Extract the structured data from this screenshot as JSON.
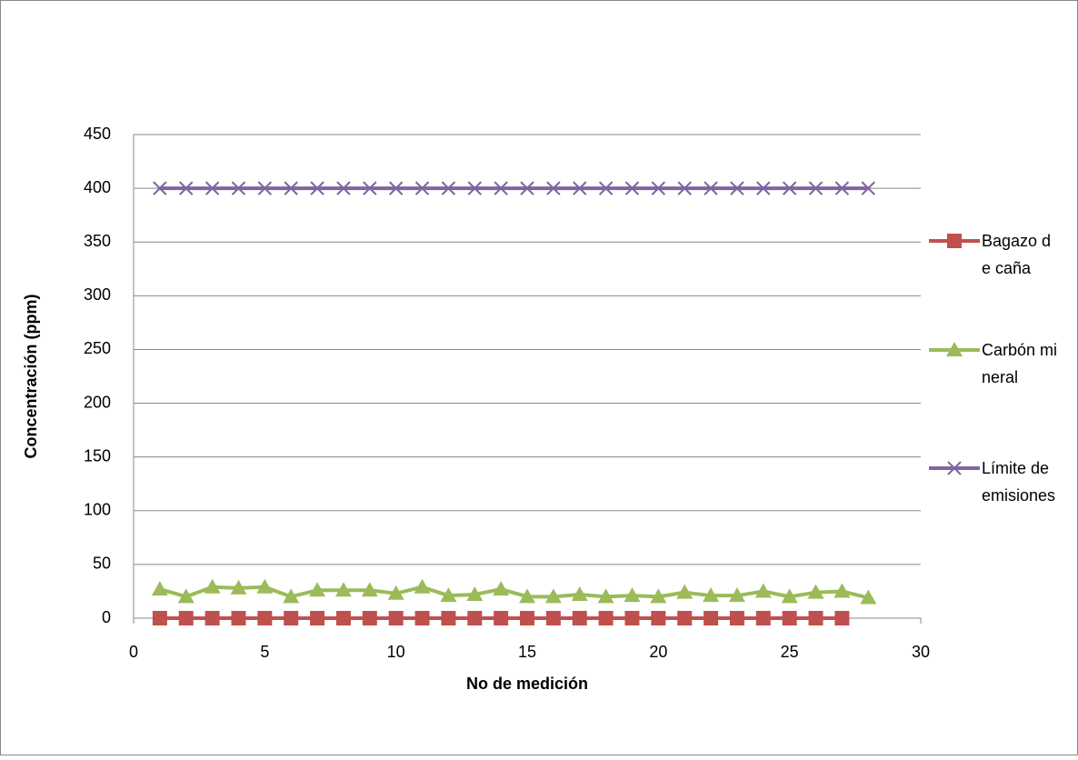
{
  "chart_data": {
    "type": "line",
    "x": [
      1,
      2,
      3,
      4,
      5,
      6,
      7,
      8,
      9,
      10,
      11,
      12,
      13,
      14,
      15,
      16,
      17,
      18,
      19,
      20,
      21,
      22,
      23,
      24,
      25,
      26,
      27,
      28
    ],
    "series": [
      {
        "name": "Bagazo de caña",
        "color": "#c0504d",
        "marker": "square",
        "values": [
          0,
          0,
          0,
          0,
          0,
          0,
          0,
          0,
          0,
          0,
          0,
          0,
          0,
          0,
          0,
          0,
          0,
          0,
          0,
          0,
          0,
          0,
          0,
          0,
          0,
          0,
          0,
          null
        ]
      },
      {
        "name": "Carbón mineral",
        "color": "#9bbb59",
        "marker": "triangle",
        "values": [
          27,
          20,
          29,
          28,
          29,
          20,
          26,
          26,
          26,
          23,
          29,
          21,
          22,
          27,
          20,
          20,
          22,
          20,
          21,
          20,
          24,
          21,
          21,
          25,
          20,
          24,
          25,
          19
        ]
      },
      {
        "name": "Límite de emisiones",
        "color": "#8064a2",
        "marker": "x",
        "values": [
          400,
          400,
          400,
          400,
          400,
          400,
          400,
          400,
          400,
          400,
          400,
          400,
          400,
          400,
          400,
          400,
          400,
          400,
          400,
          400,
          400,
          400,
          400,
          400,
          400,
          400,
          400,
          400
        ]
      }
    ],
    "xlabel": "No de medición",
    "ylabel": "Concentración (ppm)",
    "xlim": [
      0,
      30
    ],
    "xticks": [
      0,
      5,
      10,
      15,
      20,
      25,
      30
    ],
    "ylim": [
      0,
      450
    ],
    "yticks": [
      0,
      50,
      100,
      150,
      200,
      250,
      300,
      350,
      400,
      450
    ],
    "grid": true,
    "legend": "right"
  }
}
